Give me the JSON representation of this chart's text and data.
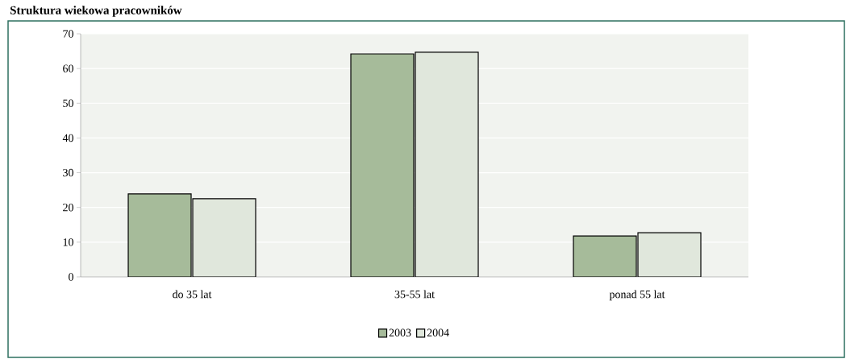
{
  "chart_data": {
    "type": "bar",
    "title": "Struktura wiekowa pracowników",
    "categories": [
      "do 35 lat",
      "35-55 lat",
      "ponad 55 lat"
    ],
    "series": [
      {
        "name": "2003",
        "color": "#a6bb9a",
        "values": [
          23.9,
          64.2,
          11.8
        ]
      },
      {
        "name": "2004",
        "color": "#e0e7dc",
        "values": [
          22.5,
          64.7,
          12.7
        ]
      }
    ],
    "ylim": [
      0,
      70
    ],
    "yticks": [
      0,
      10,
      20,
      30,
      40,
      50,
      60,
      70
    ],
    "grid": "y",
    "legend": "bottom"
  }
}
